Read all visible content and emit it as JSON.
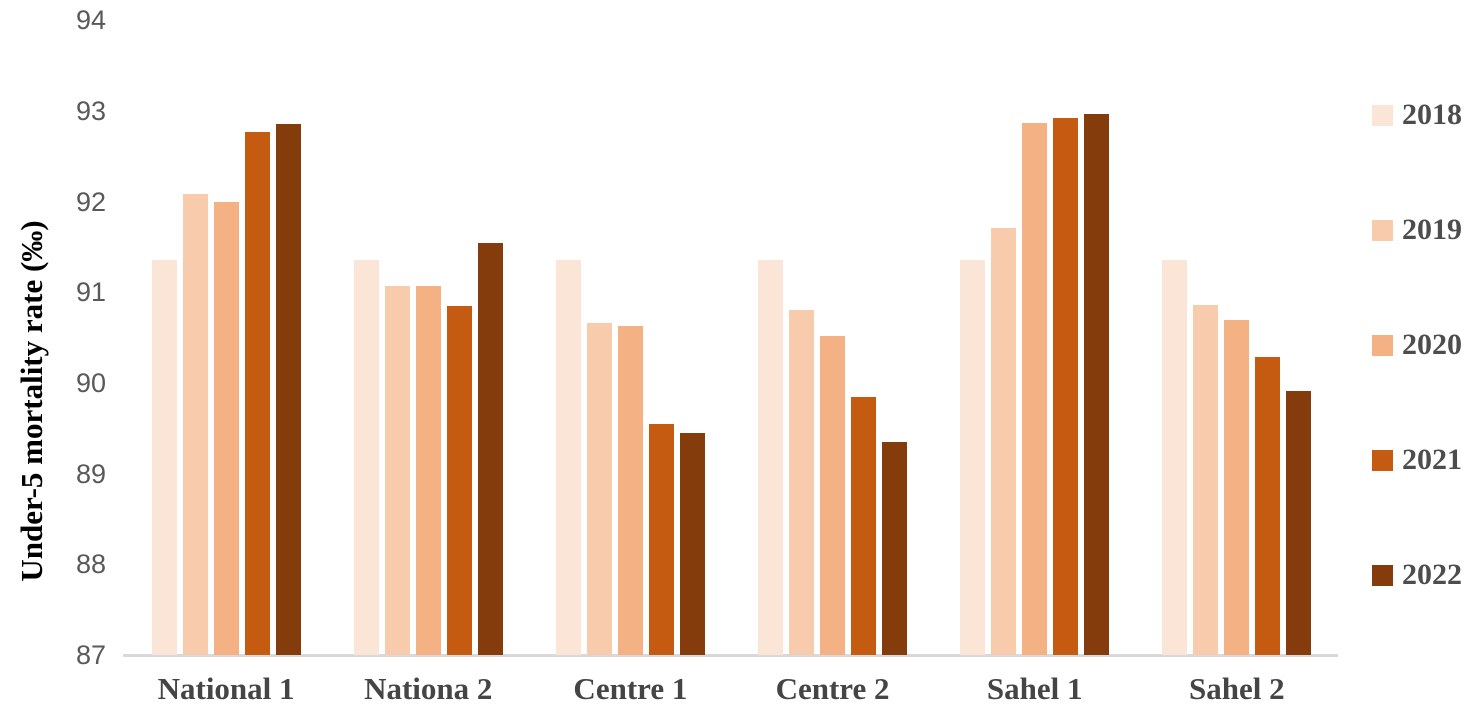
{
  "chart_data": {
    "type": "bar",
    "title": "",
    "xlabel": "",
    "ylabel": "Under-5 mortality rate (‰)",
    "ylim": [
      87,
      94
    ],
    "yticks": [
      94,
      93,
      92,
      91,
      90,
      89,
      88,
      87
    ],
    "grid": false,
    "legend_position": "right",
    "categories": [
      "National 1",
      "Nationa 2",
      "Centre 1",
      "Centre 2",
      "Sahel 1",
      "Sahel 2"
    ],
    "series": [
      {
        "name": "2018",
        "color": "#FBE5D6",
        "values": [
          91.35,
          91.35,
          91.35,
          91.35,
          91.35,
          91.35
        ]
      },
      {
        "name": "2019",
        "color": "#F8CBAD",
        "values": [
          92.08,
          91.07,
          90.66,
          90.8,
          91.71,
          90.86
        ]
      },
      {
        "name": "2020",
        "color": "#F4B183",
        "values": [
          92.0,
          91.07,
          90.63,
          90.52,
          92.87,
          90.69
        ]
      },
      {
        "name": "2021",
        "color": "#C55A11",
        "values": [
          92.77,
          90.85,
          89.55,
          89.84,
          92.92,
          90.29
        ]
      },
      {
        "name": "2022",
        "color": "#843C0C",
        "values": [
          92.85,
          91.54,
          89.45,
          89.35,
          92.96,
          89.91
        ]
      }
    ],
    "axis_colors": {
      "tick_label": "#595959",
      "category_label": "#454545",
      "axis_line": "#D9D9D9"
    }
  }
}
